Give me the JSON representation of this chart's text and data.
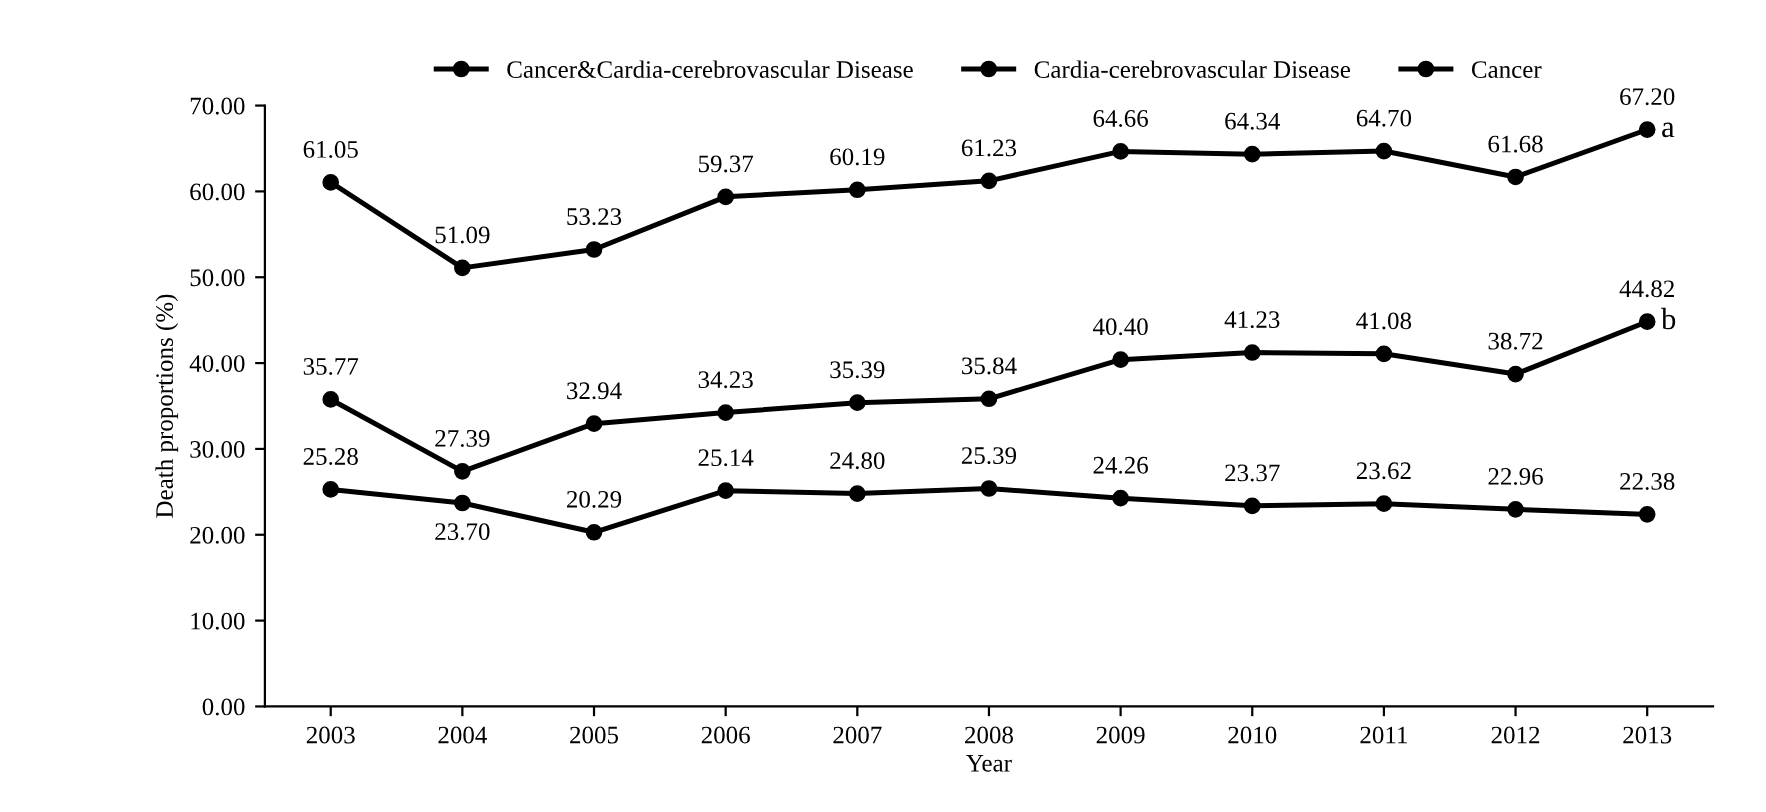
{
  "chart_data": {
    "type": "line",
    "xlabel": "Year",
    "ylabel": "Death proportions (%)",
    "categories": [
      "2003",
      "2004",
      "2005",
      "2006",
      "2007",
      "2008",
      "2009",
      "2010",
      "2011",
      "2012",
      "2013"
    ],
    "series": [
      {
        "name": "Cancer&Cardia-cerebrovascular Disease",
        "color": "#000000",
        "values": [
          61.05,
          51.09,
          53.23,
          59.37,
          60.19,
          61.23,
          64.66,
          64.34,
          64.7,
          61.68,
          67.2
        ],
        "value_labels": [
          "61.05",
          "51.09",
          "53.23",
          "59.37",
          "60.19",
          "61.23",
          "64.66",
          "64.34",
          "64.70",
          "61.68",
          "67.20"
        ]
      },
      {
        "name": "Cardia-cerebrovascular Disease",
        "color": "#000000",
        "values": [
          35.77,
          27.39,
          32.94,
          34.23,
          35.39,
          35.84,
          40.4,
          41.23,
          41.08,
          38.72,
          44.82
        ],
        "value_labels": [
          "35.77",
          "27.39",
          "32.94",
          "34.23",
          "35.39",
          "35.84",
          "40.40",
          "41.23",
          "41.08",
          "38.72",
          "44.82"
        ]
      },
      {
        "name": "Cancer",
        "color": "#000000",
        "values": [
          25.28,
          23.7,
          20.29,
          25.14,
          24.8,
          25.39,
          24.26,
          23.37,
          23.62,
          22.96,
          22.38
        ],
        "value_labels": [
          "25.28",
          "23.70",
          "20.29",
          "25.14",
          "24.80",
          "25.39",
          "24.26",
          "23.37",
          "23.62",
          "22.96",
          "22.38"
        ]
      }
    ],
    "annotations": [
      {
        "text": "a",
        "x": "2013",
        "y": 67.2
      },
      {
        "text": "b",
        "x": "2013",
        "y": 44.82
      }
    ],
    "ylim": [
      0,
      70
    ],
    "yticks": [
      {
        "value": 0,
        "label": "0.00"
      },
      {
        "value": 10,
        "label": "10.00"
      },
      {
        "value": 20,
        "label": "20.00"
      },
      {
        "value": 30,
        "label": "30.00"
      },
      {
        "value": 40,
        "label": "40.00"
      },
      {
        "value": 50,
        "label": "50.00"
      },
      {
        "value": 60,
        "label": "60.00"
      },
      {
        "value": 70,
        "label": "70.00"
      }
    ],
    "legend": "top",
    "marker": "circle",
    "line_style": "solid",
    "grid": false
  }
}
